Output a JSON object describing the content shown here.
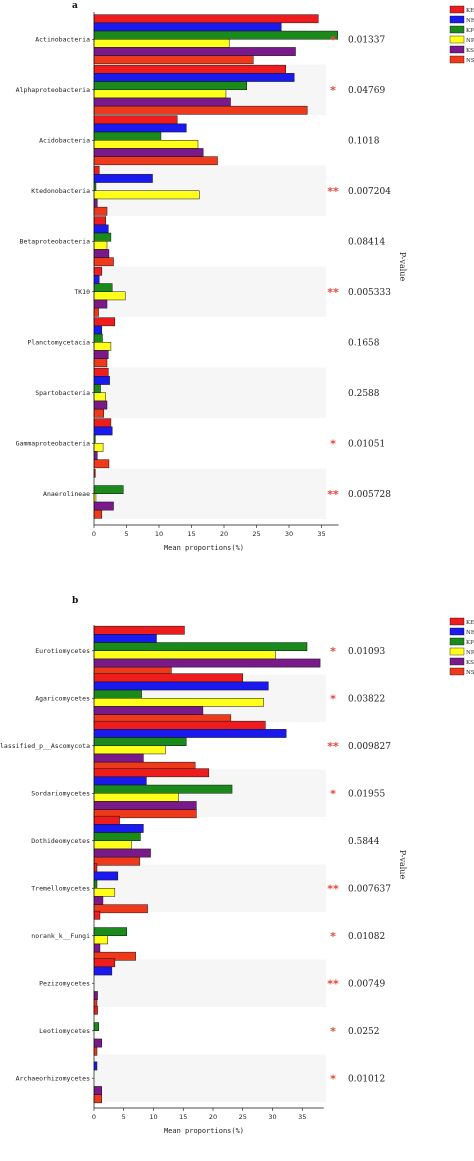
{
  "chart_data": [
    {
      "type": "bar",
      "panel_label": "a",
      "orientation": "horizontal",
      "categories": [
        "Actinobacteria",
        "Alphaproteobacteria",
        "Acidobacteria",
        "Ktedonobacteria",
        "Betaproteobacteria",
        "TK10",
        "Planctomycetacia",
        "Spartobacteria",
        "Gammaproteobacteria",
        "Anaerolineae"
      ],
      "series": [
        {
          "name": "KE",
          "color": "#ee1c1c",
          "values": [
            34.5,
            29.5,
            12.8,
            0.8,
            1.8,
            1.2,
            3.2,
            2.2,
            2.6,
            0.2
          ]
        },
        {
          "name": "NE",
          "color": "#1a1aee",
          "values": [
            28.8,
            30.8,
            14.2,
            9.0,
            2.2,
            0.8,
            1.2,
            2.4,
            2.8,
            0
          ]
        },
        {
          "name": "KP",
          "color": "#1a8a1a",
          "values": [
            37.5,
            23.5,
            10.3,
            0.3,
            2.6,
            2.8,
            1.3,
            1.0,
            0.2,
            4.5
          ]
        },
        {
          "name": "NP",
          "color": "#ffff1a",
          "values": [
            20.8,
            20.3,
            16.0,
            16.2,
            2.0,
            4.8,
            2.6,
            1.8,
            1.4,
            0.3
          ]
        },
        {
          "name": "KS",
          "color": "#7a1a8a",
          "values": [
            31.0,
            21.0,
            16.8,
            0.5,
            2.3,
            2.0,
            2.2,
            2.0,
            0.5,
            3.0
          ]
        },
        {
          "name": "NS",
          "color": "#ee3a1a",
          "values": [
            24.5,
            32.8,
            19.0,
            2.0,
            3.0,
            0.7,
            2.0,
            1.5,
            2.3,
            1.2
          ]
        }
      ],
      "pvalues": [
        "0.01337",
        "0.04769",
        "0.1018",
        "0.007204",
        "0.08414",
        "0.005333",
        "0.1658",
        "0.2588",
        "0.01051",
        "0.005728"
      ],
      "significance": [
        "*",
        "*",
        "",
        "**",
        "",
        "**",
        "",
        "",
        "*",
        "**"
      ],
      "xticks": [
        "0",
        "5",
        "10",
        "15",
        "20",
        "25",
        "30",
        "35"
      ],
      "xlabel": "Mean proportions(%)",
      "side_label": "P-value",
      "xlim": [
        0,
        38
      ],
      "legend": "top-right"
    },
    {
      "type": "bar",
      "panel_label": "b",
      "orientation": "horizontal",
      "categories": [
        "Eurotiomycetes",
        "Agaricomycetes",
        "unclassified_p__Ascomycota",
        "Sordariomycetes",
        "Dothideomycetes",
        "Tremellomycetes",
        "norank_k__Fungi",
        "Pezizomycetes",
        "Leotiomycetes",
        "Archaeorhizomycetes"
      ],
      "series": [
        {
          "name": "KE",
          "color": "#ee1c1c",
          "values": [
            15.2,
            25.0,
            28.8,
            19.3,
            4.3,
            0.5,
            1.0,
            3.5,
            0.6,
            0
          ]
        },
        {
          "name": "NE",
          "color": "#1a1aee",
          "values": [
            10.5,
            29.3,
            32.3,
            8.8,
            8.3,
            4.0,
            0,
            3.0,
            0,
            0.5
          ]
        },
        {
          "name": "KP",
          "color": "#1a8a1a",
          "values": [
            35.8,
            8.0,
            15.5,
            23.2,
            7.8,
            0.5,
            5.5,
            0,
            0.8,
            0
          ]
        },
        {
          "name": "NP",
          "color": "#ffff1a",
          "values": [
            30.5,
            28.5,
            12.0,
            14.2,
            6.3,
            3.5,
            2.3,
            0,
            0,
            0
          ]
        },
        {
          "name": "KS",
          "color": "#7a1a8a",
          "values": [
            38.0,
            18.3,
            8.3,
            17.2,
            9.5,
            1.5,
            1.0,
            0.6,
            1.3,
            1.3
          ]
        },
        {
          "name": "NS",
          "color": "#ee3a1a",
          "values": [
            13.0,
            23.0,
            17.0,
            17.2,
            7.7,
            9.0,
            7.0,
            0.5,
            0.5,
            1.3
          ]
        }
      ],
      "pvalues": [
        "0.01093",
        "0.03822",
        "0.009827",
        "0.01955",
        "0.5844",
        "0.007637",
        "0.01082",
        "0.00749",
        "0.0252",
        "0.01012"
      ],
      "significance": [
        "*",
        "*",
        "**",
        "*",
        "",
        "**",
        "*",
        "**",
        "*",
        "*"
      ],
      "xticks": [
        "0",
        "5",
        "10",
        "15",
        "20",
        "25",
        "30",
        "35"
      ],
      "xlabel": "Mean proportions(%)",
      "side_label": "P-value",
      "xlim": [
        0,
        39
      ],
      "legend": "top-right"
    }
  ]
}
